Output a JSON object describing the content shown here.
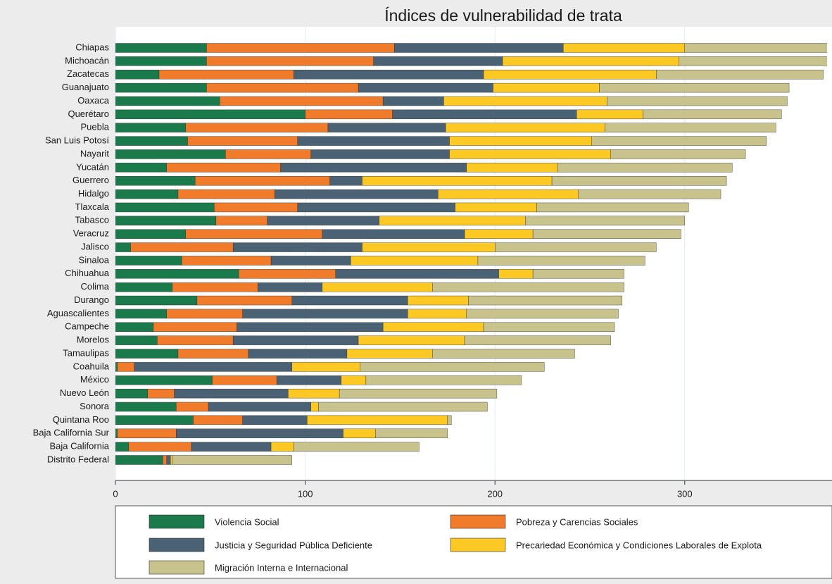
{
  "chart_data": {
    "type": "stacked_bar_horizontal",
    "title": "Índices de vulnerabilidad de trata",
    "categories": [
      "Chiapas",
      "Michoacán",
      "Zacatecas",
      "Guanajuato",
      "Oaxaca",
      "Querétaro",
      "Puebla",
      "San Luis Potosí",
      "Nayarit",
      "Yucatán",
      "Guerrero",
      "Hidalgo",
      "Tlaxcala",
      "Tabasco",
      "Veracruz",
      "Jalisco",
      "Sinaloa",
      "Chihuahua",
      "Colima",
      "Durango",
      "Aguascalientes",
      "Campeche",
      "Morelos",
      "Tamaulipas",
      "Coahuila",
      "México",
      "Nuevo León",
      "Sonora",
      "Quintana Roo",
      "Baja California Sur",
      "Baja California",
      "Distrito Federal"
    ],
    "series": [
      {
        "name": "Violencia Social",
        "color": "#1b7a4b",
        "values": [
          48,
          48,
          23,
          48,
          55,
          100,
          37,
          38,
          58,
          27,
          42,
          33,
          52,
          53,
          37,
          8,
          35,
          65,
          30,
          43,
          27,
          20,
          22,
          33,
          1,
          51,
          17,
          32,
          41,
          1,
          7,
          25
        ]
      },
      {
        "name": "Pobreza y Carencias Sociales",
        "color": "#f07b2b",
        "values": [
          99,
          88,
          71,
          80,
          86,
          46,
          75,
          58,
          45,
          60,
          71,
          51,
          44,
          27,
          72,
          54,
          47,
          51,
          45,
          50,
          40,
          44,
          40,
          37,
          9,
          34,
          14,
          17,
          26,
          31,
          33,
          2
        ]
      },
      {
        "name": "Justicia y Seguridad Pública Deficiente",
        "color": "#4a6274",
        "values": [
          89,
          68,
          100,
          71,
          32,
          97,
          62,
          80,
          73,
          98,
          17,
          86,
          83,
          59,
          75,
          68,
          42,
          86,
          34,
          61,
          87,
          77,
          66,
          52,
          83,
          34,
          60,
          54,
          34,
          88,
          42,
          2
        ]
      },
      {
        "name": "Precariedad Económica y Condiciones Laborales de Explota",
        "color": "#fcc823",
        "values": [
          64,
          93,
          91,
          56,
          86,
          35,
          84,
          75,
          85,
          48,
          100,
          74,
          43,
          77,
          36,
          70,
          67,
          18,
          58,
          32,
          31,
          53,
          56,
          45,
          36,
          13,
          27,
          4,
          74,
          17,
          12,
          1
        ]
      },
      {
        "name": "Migración Interna e Internacional",
        "color": "#c8c28d",
        "values": [
          76,
          79,
          88,
          100,
          95,
          73,
          90,
          92,
          71,
          92,
          92,
          75,
          80,
          84,
          78,
          85,
          88,
          48,
          101,
          81,
          80,
          69,
          77,
          75,
          97,
          82,
          83,
          89,
          2,
          38,
          66,
          63
        ]
      }
    ],
    "xlim": [
      0,
      375
    ],
    "xticks": [
      0,
      100,
      200,
      300
    ],
    "grid": true
  }
}
